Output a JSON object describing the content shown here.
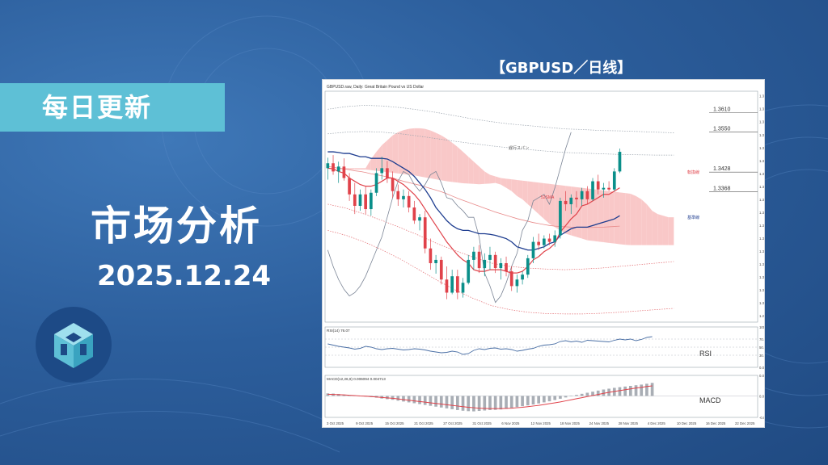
{
  "tag": "每日更新",
  "title": "市场分析",
  "date": "2025.12.24",
  "chart_caption": "【GBPUSD／日线】",
  "colors": {
    "tag_bg": "#5ec0d6",
    "bull": "#0a8f8a",
    "bear": "#e0424a",
    "tenkan": "#e0424a",
    "kijun": "#1d3c8f",
    "chikou": "#7b8596",
    "cloud_bull": "#bfeef6",
    "cloud_bear": "#f9c8c8"
  },
  "chart_data": {
    "type": "line",
    "symbol_header": "GBPUSD.raw, Daily: Great Britain Pound vs US Dollar",
    "price_axis": [
      "1.36610",
      "1.36215",
      "1.35820",
      "1.35425",
      "1.35030",
      "1.34635",
      "1.34240",
      "1.33845",
      "1.33450",
      "1.33055",
      "1.32660",
      "1.32265",
      "1.31870",
      "1.31475",
      "1.31080",
      "1.30685",
      "1.30290",
      "1.29895"
    ],
    "ylim": [
      1.297,
      1.3675
    ],
    "levels": [
      {
        "label": "1.3610",
        "value": 1.361
      },
      {
        "label": "1.3550",
        "value": 1.355
      },
      {
        "label": "1.3428",
        "value": 1.3428
      },
      {
        "label": "1.3368",
        "value": 1.3368
      }
    ],
    "annotations": [
      "遅行スパン",
      "52SMA",
      "転換線",
      "基準線"
    ],
    "x_labels": [
      "3 Oct 2025",
      "9 Oct 2025",
      "15 Oct 2025",
      "21 Oct 2025",
      "27 Oct 2025",
      "31 Oct 2025",
      "6 Nov 2025",
      "12 Nov 2025",
      "18 Nov 2025",
      "24 Nov 2025",
      "28 Nov 2025",
      "4 Dec 2025",
      "10 Dec 2025",
      "16 Dec 2025",
      "22 Dec 2025"
    ],
    "ohlc": [
      [
        1.344,
        1.3472,
        1.3405,
        1.3455
      ],
      [
        1.3455,
        1.348,
        1.342,
        1.343
      ],
      [
        1.343,
        1.346,
        1.3395,
        1.3445
      ],
      [
        1.3445,
        1.347,
        1.3402,
        1.341
      ],
      [
        1.341,
        1.3425,
        1.334,
        1.336
      ],
      [
        1.336,
        1.3395,
        1.33,
        1.3325
      ],
      [
        1.3325,
        1.3375,
        1.331,
        1.336
      ],
      [
        1.336,
        1.3385,
        1.33,
        1.3315
      ],
      [
        1.3315,
        1.3375,
        1.3295,
        1.3365
      ],
      [
        1.3365,
        1.344,
        1.3355,
        1.3425
      ],
      [
        1.3425,
        1.3475,
        1.3405,
        1.344
      ],
      [
        1.344,
        1.3462,
        1.3395,
        1.341
      ],
      [
        1.341,
        1.343,
        1.335,
        1.337
      ],
      [
        1.337,
        1.339,
        1.3325,
        1.3345
      ],
      [
        1.3345,
        1.3375,
        1.332,
        1.3355
      ],
      [
        1.3355,
        1.337,
        1.3305,
        1.332
      ],
      [
        1.332,
        1.334,
        1.327,
        1.328
      ],
      [
        1.328,
        1.33,
        1.325,
        1.329
      ],
      [
        1.329,
        1.331,
        1.318,
        1.3195
      ],
      [
        1.3195,
        1.3225,
        1.313,
        1.315
      ],
      [
        1.315,
        1.3175,
        1.3118,
        1.316
      ],
      [
        1.316,
        1.317,
        1.3085,
        1.31
      ],
      [
        1.31,
        1.314,
        1.304,
        1.306
      ],
      [
        1.306,
        1.313,
        1.3055,
        1.311
      ],
      [
        1.311,
        1.313,
        1.304,
        1.306
      ],
      [
        1.306,
        1.3105,
        1.3045,
        1.309
      ],
      [
        1.309,
        1.3175,
        1.3085,
        1.316
      ],
      [
        1.316,
        1.32,
        1.313,
        1.3185
      ],
      [
        1.3185,
        1.3205,
        1.312,
        1.3135
      ],
      [
        1.3135,
        1.318,
        1.311,
        1.316
      ],
      [
        1.316,
        1.32,
        1.313,
        1.3175
      ],
      [
        1.3175,
        1.3185,
        1.312,
        1.3135
      ],
      [
        1.3135,
        1.3165,
        1.31,
        1.315
      ],
      [
        1.315,
        1.317,
        1.311,
        1.3125
      ],
      [
        1.3125,
        1.314,
        1.3065,
        1.308
      ],
      [
        1.308,
        1.3115,
        1.306,
        1.31
      ],
      [
        1.31,
        1.3125,
        1.3085,
        1.3115
      ],
      [
        1.3115,
        1.3175,
        1.3105,
        1.3165
      ],
      [
        1.3165,
        1.323,
        1.315,
        1.3215
      ],
      [
        1.3215,
        1.324,
        1.319,
        1.3205
      ],
      [
        1.3205,
        1.3235,
        1.3195,
        1.3225
      ],
      [
        1.3225,
        1.324,
        1.3205,
        1.3215
      ],
      [
        1.3215,
        1.325,
        1.32,
        1.3235
      ],
      [
        1.3235,
        1.335,
        1.3225,
        1.334
      ],
      [
        1.334,
        1.337,
        1.331,
        1.333
      ],
      [
        1.333,
        1.336,
        1.33,
        1.335
      ],
      [
        1.335,
        1.337,
        1.332,
        1.3345
      ],
      [
        1.3345,
        1.338,
        1.3325,
        1.337
      ],
      [
        1.337,
        1.3385,
        1.333,
        1.3345
      ],
      [
        1.3345,
        1.341,
        1.334,
        1.34
      ],
      [
        1.34,
        1.342,
        1.336,
        1.3375
      ],
      [
        1.3375,
        1.3395,
        1.335,
        1.338
      ],
      [
        1.338,
        1.34,
        1.337,
        1.3375
      ],
      [
        1.3375,
        1.344,
        1.337,
        1.343
      ],
      [
        1.343,
        1.35,
        1.3425,
        1.349
      ]
    ],
    "tenkan": [
      1.344,
      1.3438,
      1.343,
      1.3425,
      1.341,
      1.34,
      1.339,
      1.3385,
      1.3385,
      1.339,
      1.34,
      1.341,
      1.341,
      1.34,
      1.339,
      1.3375,
      1.336,
      1.334,
      1.3315,
      1.329,
      1.3265,
      1.324,
      1.3215,
      1.3195,
      1.3175,
      1.316,
      1.315,
      1.313,
      1.3125,
      1.3125,
      1.313,
      1.313,
      1.313,
      1.3125,
      1.312,
      1.312,
      1.3125,
      1.314,
      1.316,
      1.317,
      1.3185,
      1.3195,
      1.321,
      1.3245,
      1.3265,
      1.3285,
      1.33,
      1.3325,
      1.333,
      1.334,
      1.335,
      1.336,
      1.336,
      1.337,
      1.338
    ],
    "kijun": [
      1.349,
      1.349,
      1.3488,
      1.3485,
      1.3485,
      1.348,
      1.3475,
      1.3475,
      1.347,
      1.347,
      1.347,
      1.3468,
      1.346,
      1.345,
      1.344,
      1.343,
      1.3415,
      1.3395,
      1.3375,
      1.335,
      1.332,
      1.33,
      1.328,
      1.3265,
      1.3255,
      1.325,
      1.325,
      1.3245,
      1.324,
      1.324,
      1.3238,
      1.3235,
      1.323,
      1.3225,
      1.3215,
      1.32,
      1.3195,
      1.319,
      1.319,
      1.3195,
      1.32,
      1.321,
      1.3215,
      1.3235,
      1.3245,
      1.3255,
      1.326,
      1.326,
      1.326,
      1.3265,
      1.327,
      1.3275,
      1.328,
      1.3285,
      1.3295
    ],
    "sma52": [
      1.3445,
      1.3443,
      1.344,
      1.3438,
      1.3435,
      1.3432,
      1.343,
      1.3427,
      1.3423,
      1.342,
      1.3417,
      1.3413,
      1.341,
      1.3405,
      1.34,
      1.3396,
      1.3392,
      1.3388,
      1.3383,
      1.3378,
      1.3373,
      1.3368,
      1.3362,
      1.3355,
      1.3348,
      1.3342,
      1.3336,
      1.333,
      1.3324,
      1.3318,
      1.3312,
      1.3306,
      1.3301,
      1.3296,
      1.3291,
      1.3286,
      1.3282,
      1.3278,
      1.3274,
      1.3271,
      1.3268,
      1.3265,
      1.3263,
      1.3262,
      1.3261,
      1.326,
      1.326,
      1.3259,
      1.3259,
      1.3259,
      1.326,
      1.326,
      1.3261,
      1.3262,
      1.3263
    ],
    "chikou": [
      1.319,
      1.314,
      1.31,
      1.307,
      1.305,
      1.306,
      1.308,
      1.311,
      1.315,
      1.319,
      1.323,
      1.329,
      1.335,
      1.34,
      1.343,
      1.342,
      1.339,
      1.337,
      1.339,
      1.342,
      1.343,
      1.3395,
      1.335,
      1.3345,
      1.3325,
      1.331,
      1.329,
      1.329,
      1.323,
      1.312,
      1.308,
      1.303,
      1.305,
      1.309,
      1.314,
      1.318,
      1.325,
      1.328,
      1.334,
      1.335,
      1.336,
      1.333,
      1.338,
      1.344,
      1.35,
      1.355
    ],
    "span_a": [
      1.344,
      1.344,
      1.3438,
      1.3436,
      1.3436,
      1.3436,
      1.3436,
      1.3436,
      1.3434,
      1.3432,
      1.343,
      1.3428,
      1.3426,
      1.3424,
      1.3422,
      1.342,
      1.3418,
      1.3415,
      1.3412,
      1.3409,
      1.3406,
      1.3403,
      1.34,
      1.3398,
      1.3396,
      1.3394,
      1.3393,
      1.3392,
      1.3391,
      1.3392,
      1.3393,
      1.3395,
      1.339,
      1.338,
      1.337,
      1.3355,
      1.3345,
      1.333,
      1.3315,
      1.33,
      1.3285,
      1.327,
      1.326,
      1.325,
      1.324,
      1.3235,
      1.323,
      1.3225,
      1.322,
      1.3218,
      1.3216,
      1.3214,
      1.3212,
      1.321,
      1.3208,
      1.3206,
      1.3205,
      1.3205,
      1.3205,
      1.3205,
      1.3205,
      1.3205,
      1.3205,
      1.3205,
      1.3205
    ],
    "span_b": [
      1.344,
      1.344,
      1.344,
      1.344,
      1.344,
      1.344,
      1.344,
      1.344,
      1.3468,
      1.349,
      1.351,
      1.3525,
      1.354,
      1.355,
      1.3556,
      1.356,
      1.3562,
      1.3562,
      1.356,
      1.3555,
      1.3548,
      1.354,
      1.353,
      1.3518,
      1.3505,
      1.349,
      1.3475,
      1.346,
      1.3445,
      1.343,
      1.342,
      1.3415,
      1.341,
      1.3408,
      1.3406,
      1.3404,
      1.3402,
      1.34,
      1.3398,
      1.3396,
      1.3394,
      1.3392,
      1.339,
      1.3388,
      1.3386,
      1.3384,
      1.3382,
      1.338,
      1.3378,
      1.3376,
      1.3374,
      1.3372,
      1.337,
      1.3368,
      1.3366,
      1.3364,
      1.3362,
      1.3355,
      1.3345,
      1.333,
      1.331,
      1.33,
      1.3295,
      1.329,
      1.329
    ],
    "envelopes": [
      {
        "name": "upper2",
        "values": [
          1.362,
          1.3628,
          1.3632,
          1.363,
          1.3625,
          1.3618,
          1.361,
          1.36,
          1.359,
          1.3582,
          1.3575,
          1.357,
          1.3565,
          1.356,
          1.3558,
          1.3555,
          1.3554,
          1.3552,
          1.355,
          1.3548
        ]
      },
      {
        "name": "upper1",
        "values": [
          1.3545,
          1.355,
          1.3552,
          1.355,
          1.3545,
          1.3538,
          1.353,
          1.3522,
          1.3515,
          1.3508,
          1.3502,
          1.3497,
          1.3492,
          1.3488,
          1.3486,
          1.3484,
          1.3482,
          1.3481,
          1.348,
          1.348
        ]
      },
      {
        "name": "lower1",
        "values": [
          1.333,
          1.3318,
          1.33,
          1.328,
          1.3258,
          1.3235,
          1.321,
          1.3188,
          1.3168,
          1.315,
          1.314,
          1.3135,
          1.3132,
          1.313,
          1.3132,
          1.3135,
          1.314,
          1.3145,
          1.315,
          1.3155
        ]
      },
      {
        "name": "lower2",
        "values": [
          1.325,
          1.3235,
          1.3215,
          1.319,
          1.3162,
          1.313,
          1.3098,
          1.3068,
          1.3042,
          1.302,
          1.3008,
          1.3,
          1.2996,
          1.2995,
          1.2995,
          1.2997,
          1.3,
          1.3004,
          1.3008,
          1.3012
        ]
      }
    ],
    "rsi": {
      "header": "RSI(14) 76.07",
      "label": "RSI",
      "axis": [
        "100.00",
        "70.00",
        "50.00",
        "30.00",
        "0.00"
      ],
      "ylim": [
        0,
        100
      ],
      "values": [
        58,
        55,
        52,
        50,
        48,
        45,
        47,
        52,
        50,
        46,
        44,
        46,
        47,
        45,
        43,
        44,
        46,
        45,
        43,
        40,
        38,
        36,
        37,
        40,
        38,
        32,
        34,
        42,
        46,
        44,
        47,
        48,
        45,
        46,
        44,
        40,
        42,
        45,
        47,
        52,
        55,
        56,
        58,
        64,
        66,
        63,
        65,
        62,
        67,
        66,
        65,
        64,
        63,
        67,
        70,
        68,
        70,
        66,
        69,
        74,
        76
      ]
    },
    "macd": {
      "header": "MACD(12,26,9) 0.006094 0.004713",
      "label": "MACD",
      "axis": [
        "0.009623",
        "0.000000",
        "-0.010029"
      ],
      "ylim": [
        -0.01,
        0.0096
      ],
      "histogram": [
        0.0012,
        0.0011,
        0.0009,
        0.0006,
        0.0004,
        0.0002,
        0.0,
        -0.0003,
        -0.0005,
        -0.0008,
        -0.0012,
        -0.0015,
        -0.0018,
        -0.0022,
        -0.0026,
        -0.003,
        -0.0034,
        -0.0038,
        -0.0042,
        -0.0046,
        -0.005,
        -0.0054,
        -0.0058,
        -0.0062,
        -0.0066,
        -0.0069,
        -0.0071,
        -0.0072,
        -0.007,
        -0.0068,
        -0.0066,
        -0.0065,
        -0.0063,
        -0.006,
        -0.0056,
        -0.0052,
        -0.0048,
        -0.0044,
        -0.004,
        -0.0035,
        -0.003,
        -0.0025,
        -0.0019,
        -0.0013,
        -0.0007,
        -0.0001,
        0.0005,
        0.001,
        0.0015,
        0.002,
        0.0025,
        0.003,
        0.0034,
        0.0038,
        0.0041,
        0.0044,
        0.0047,
        0.005,
        0.0053,
        0.0057,
        0.0061
      ],
      "signal": [
        0.0008,
        0.0007,
        0.0006,
        0.0005,
        0.0003,
        0.0002,
        0.0,
        -0.0001,
        -0.0003,
        -0.0005,
        -0.0007,
        -0.0009,
        -0.0011,
        -0.0014,
        -0.0017,
        -0.002,
        -0.0023,
        -0.0026,
        -0.0029,
        -0.0032,
        -0.0035,
        -0.0038,
        -0.0041,
        -0.0044,
        -0.0047,
        -0.005,
        -0.0053,
        -0.0055,
        -0.0057,
        -0.0058,
        -0.0059,
        -0.0059,
        -0.0059,
        -0.0058,
        -0.0057,
        -0.0055,
        -0.0053,
        -0.005,
        -0.0047,
        -0.0044,
        -0.004,
        -0.0036,
        -0.0032,
        -0.0028,
        -0.0023,
        -0.0018,
        -0.0013,
        -0.0008,
        -0.0003,
        0.0002,
        0.0007,
        0.0012,
        0.0017,
        0.0021,
        0.0025,
        0.0029,
        0.0033,
        0.0037,
        0.004,
        0.0044,
        0.0047
      ]
    }
  }
}
